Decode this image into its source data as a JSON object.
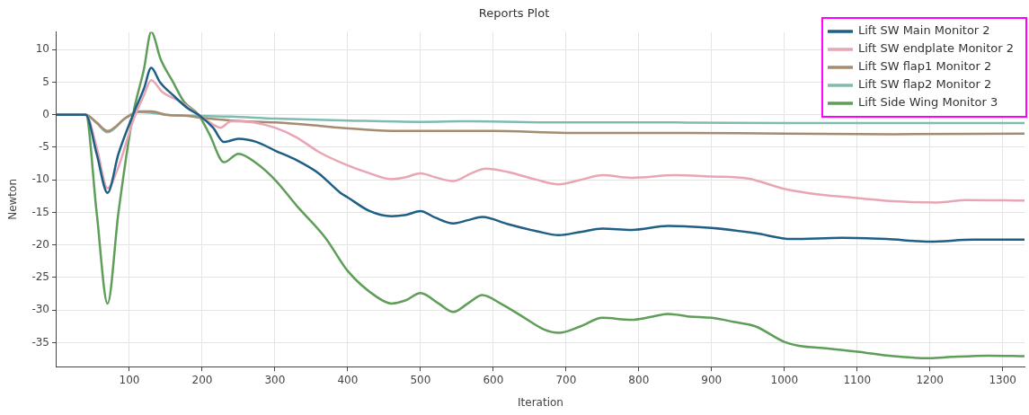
{
  "chart_data": {
    "type": "line",
    "title": "Reports Plot",
    "xlabel": "Iteration",
    "ylabel": "Newton",
    "xlim": [
      0,
      1330
    ],
    "xticks": [
      100,
      200,
      300,
      400,
      500,
      600,
      700,
      800,
      900,
      1000,
      1100,
      1200,
      1300
    ],
    "ylim": [
      -38.7,
      12.7
    ],
    "yticks": [
      -35,
      -30,
      -25,
      -20,
      -15,
      -10,
      -5,
      0,
      5,
      10
    ],
    "grid": true,
    "legend": "top right",
    "marker": "none",
    "line_style": "solid",
    "series": [
      {
        "name": "Lift SW Main Monitor 2",
        "color": "#1f5f86",
        "x": [
          0,
          40,
          55,
          70,
          85,
          105,
          120,
          130,
          142,
          160,
          180,
          195,
          215,
          230,
          250,
          275,
          300,
          330,
          360,
          390,
          400,
          430,
          460,
          480,
          500,
          520,
          545,
          565,
          585,
          620,
          660,
          690,
          720,
          750,
          790,
          840,
          900,
          960,
          1010,
          1080,
          1140,
          1200,
          1260,
          1330
        ],
        "values": [
          0,
          0,
          -6,
          -12,
          -6,
          0,
          4,
          7.2,
          5,
          3,
          1,
          0,
          -2,
          -4.2,
          -3.7,
          -4.2,
          -5.5,
          -7,
          -9,
          -12,
          -12.7,
          -14.8,
          -15.6,
          -15.4,
          -14.8,
          -15.8,
          -16.7,
          -16.2,
          -15.7,
          -16.8,
          -17.9,
          -18.5,
          -18,
          -17.5,
          -17.7,
          -17.1,
          -17.4,
          -18.2,
          -19.1,
          -18.9,
          -19.1,
          -19.5,
          -19.2,
          -19.2
        ]
      },
      {
        "name": "Lift SW endplate Monitor 2",
        "color": "#e8a6b4",
        "x": [
          0,
          40,
          55,
          70,
          85,
          105,
          120,
          130,
          145,
          170,
          195,
          215,
          225,
          240,
          270,
          300,
          330,
          360,
          400,
          430,
          460,
          480,
          500,
          520,
          545,
          570,
          590,
          620,
          660,
          690,
          720,
          750,
          790,
          850,
          900,
          950,
          1000,
          1050,
          1100,
          1150,
          1210,
          1250,
          1330
        ],
        "values": [
          0,
          0,
          -5,
          -11.3,
          -8,
          -1,
          3,
          5.3,
          3.5,
          2,
          0,
          -1.5,
          -2,
          -1,
          -1.2,
          -2,
          -3.5,
          -5.7,
          -7.8,
          -9,
          -9.9,
          -9.6,
          -9,
          -9.6,
          -10.2,
          -9,
          -8.3,
          -8.8,
          -10,
          -10.7,
          -10,
          -9.3,
          -9.7,
          -9.3,
          -9.5,
          -9.8,
          -11.4,
          -12.3,
          -12.8,
          -13.3,
          -13.5,
          -13.1,
          -13.2
        ]
      },
      {
        "name": "Lift SW flap1 Monitor 2",
        "color": "#a58c6e",
        "x": [
          0,
          40,
          55,
          70,
          95,
          115,
          130,
          150,
          180,
          200,
          240,
          300,
          350,
          390,
          460,
          600,
          700,
          850,
          1000,
          1150,
          1330
        ],
        "values": [
          0,
          0,
          -1.2,
          -2.5,
          -0.5,
          0.5,
          0.5,
          0,
          -0.2,
          -0.5,
          -0.9,
          -1.2,
          -1.6,
          -2,
          -2.5,
          -2.5,
          -2.8,
          -2.8,
          -2.9,
          -3,
          -2.9
        ]
      },
      {
        "name": "Lift SW flap2 Monitor 2",
        "color": "#7fbcb0",
        "x": [
          0,
          40,
          55,
          70,
          95,
          110,
          130,
          150,
          200,
          240,
          300,
          400,
          500,
          570,
          700,
          850,
          1000,
          1330
        ],
        "values": [
          0,
          0,
          -1.3,
          -2.7,
          -0.5,
          0.4,
          0.3,
          0,
          -0.2,
          -0.3,
          -0.6,
          -0.9,
          -1.1,
          -1,
          -1.2,
          -1.2,
          -1.3,
          -1.3
        ]
      },
      {
        "name": "Lift Side Wing Monitor 3",
        "color": "#5f9e58",
        "x": [
          0,
          40,
          55,
          70,
          85,
          105,
          120,
          130,
          143,
          160,
          175,
          195,
          210,
          230,
          250,
          275,
          300,
          330,
          370,
          400,
          440,
          460,
          480,
          500,
          525,
          545,
          565,
          585,
          610,
          640,
          670,
          690,
          720,
          750,
          790,
          815,
          840,
          870,
          900,
          930,
          960,
          1000,
          1020,
          1060,
          1100,
          1150,
          1200,
          1230,
          1280,
          1330
        ],
        "values": [
          0,
          0,
          -15,
          -29,
          -15,
          0,
          7,
          12.7,
          8.5,
          5,
          2,
          0,
          -3,
          -7.3,
          -6,
          -7.5,
          -10,
          -14,
          -19,
          -24,
          -28,
          -29,
          -28.5,
          -27.4,
          -29,
          -30.3,
          -29,
          -27.7,
          -29,
          -31,
          -33,
          -33.5,
          -32.5,
          -31.2,
          -31.5,
          -31.1,
          -30.6,
          -31,
          -31.2,
          -31.8,
          -32.5,
          -34.9,
          -35.5,
          -35.9,
          -36.4,
          -37.1,
          -37.4,
          -37.2,
          -37,
          -37.1
        ]
      }
    ]
  }
}
